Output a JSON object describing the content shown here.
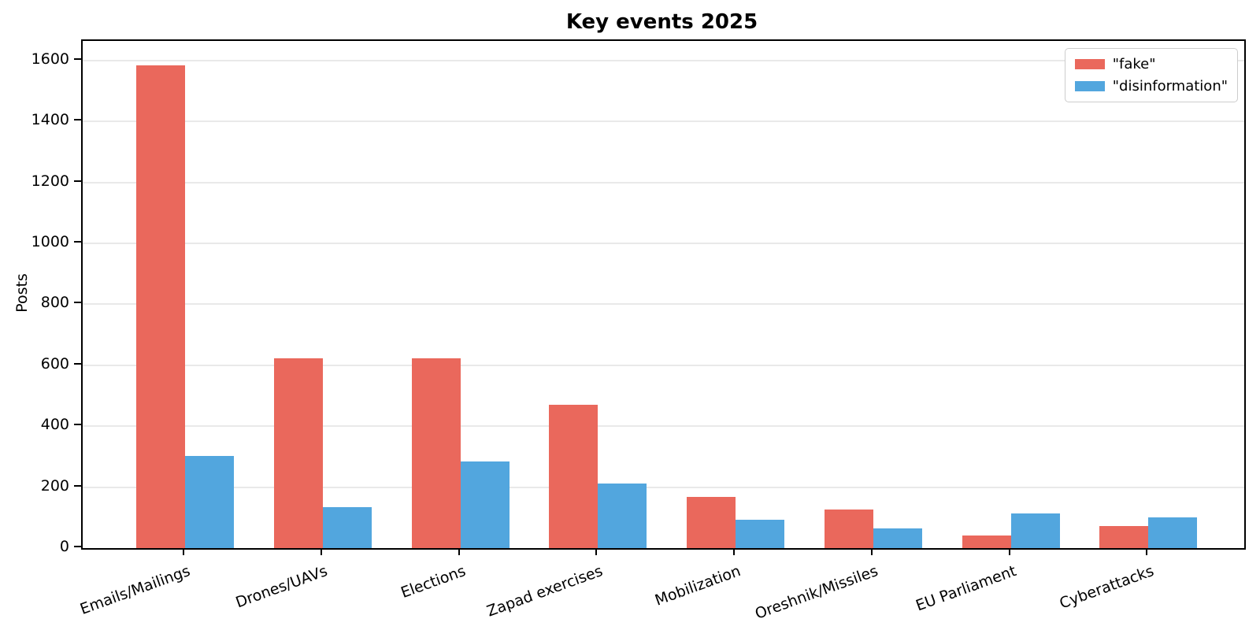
{
  "chart_data": {
    "type": "bar",
    "title": "Key events 2025",
    "xlabel": "",
    "ylabel": "Posts",
    "categories": [
      "Emails/Mailings",
      "Drones/UAVs",
      "Elections",
      "Zapad exercises",
      "Mobilization",
      "Oreshnik/Missiles",
      "EU Parliament",
      "Cyberattacks"
    ],
    "series": [
      {
        "name": "\"fake\"",
        "color": "#ea685c",
        "values": [
          1585,
          624,
          624,
          471,
          168,
          127,
          41,
          72
        ]
      },
      {
        "name": "\"disinformation\"",
        "color": "#52a6de",
        "values": [
          303,
          135,
          285,
          211,
          92,
          65,
          115,
          100
        ]
      }
    ],
    "yticks": [
      0,
      200,
      400,
      600,
      800,
      1000,
      1200,
      1400,
      1600
    ],
    "ylim": [
      0,
      1664
    ],
    "grid": true,
    "legend_position": "upper right",
    "colors": {
      "fake": "#ea685c",
      "disinformation": "#52a6de",
      "grid": "#e9e9e9",
      "spine": "#000000"
    }
  }
}
